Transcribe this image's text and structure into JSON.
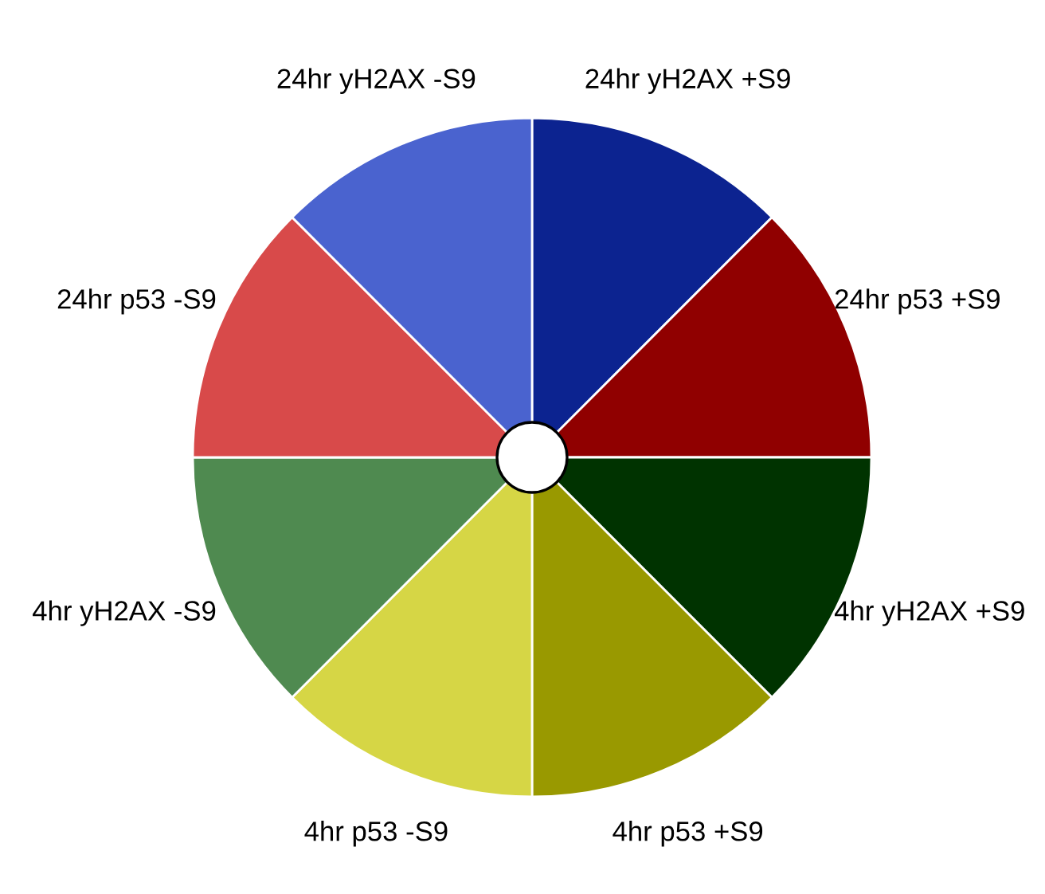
{
  "chart_data": {
    "type": "pie",
    "categories": [
      "24hr yH2AX +S9",
      "24hr p53 +S9",
      "4hr yH2AX +S9",
      "4hr p53 +S9",
      "4hr p53 -S9",
      "4hr yH2AX -S9",
      "24hr p53 -S9",
      "24hr yH2AX -S9"
    ],
    "values": [
      12.5,
      12.5,
      12.5,
      12.5,
      12.5,
      12.5,
      12.5,
      12.5
    ],
    "colors": [
      "#0c2390",
      "#900000",
      "#003300",
      "#999900",
      "#d6d645",
      "#4f8a50",
      "#d84a4a",
      "#4a63cf"
    ]
  }
}
